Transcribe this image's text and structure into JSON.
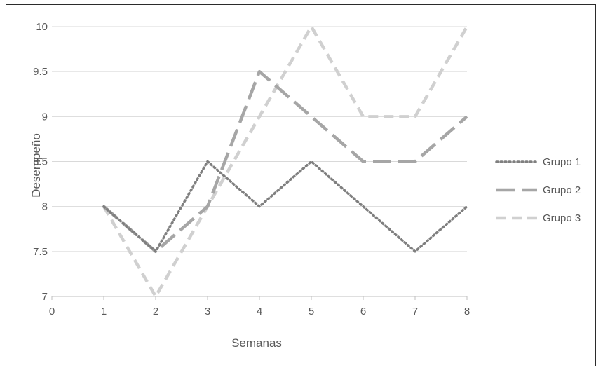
{
  "chart_data": {
    "type": "line",
    "title": "",
    "xlabel": "Semanas",
    "ylabel": "Desempeño",
    "xlim": [
      0,
      8
    ],
    "ylim": [
      7,
      10
    ],
    "x_ticks": [
      "0",
      "1",
      "2",
      "3",
      "4",
      "5",
      "6",
      "7",
      "8"
    ],
    "y_ticks": [
      "7",
      "7.5",
      "8",
      "8.5",
      "9",
      "9.5",
      "10"
    ],
    "grid": "horizontal",
    "legend_position": "right",
    "x": [
      1,
      2,
      3,
      4,
      5,
      6,
      7,
      8
    ],
    "series": [
      {
        "name": "Grupo 1",
        "values": [
          8,
          7.5,
          8.5,
          8,
          8.5,
          8,
          7.5,
          8
        ],
        "color": "#7f7f7f",
        "style": "dotted"
      },
      {
        "name": "Grupo 2",
        "values": [
          8,
          7.5,
          8,
          9.5,
          9,
          8.5,
          8.5,
          9
        ],
        "color": "#a6a6a6",
        "style": "long-dash"
      },
      {
        "name": "Grupo 3",
        "values": [
          8,
          7,
          8,
          9,
          10,
          9,
          9,
          10
        ],
        "color": "#d0d0d0",
        "style": "dash"
      }
    ]
  }
}
